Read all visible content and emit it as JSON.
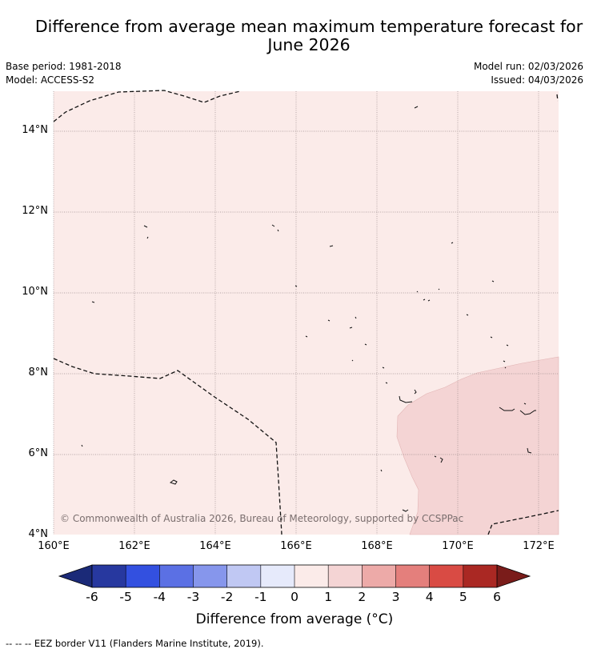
{
  "title": {
    "line1": "Difference from average mean maximum temperature forecast for",
    "line2": "June 2026"
  },
  "meta": {
    "base_period": "Base period: 1981-2018",
    "model": "Model: ACCESS-S2",
    "model_run": "Model run: 02/03/2026",
    "issued": "Issued: 04/03/2026"
  },
  "map": {
    "lat_labels": [
      "14°N",
      "12°N",
      "10°N",
      "8°N",
      "6°N",
      "4°N"
    ],
    "lon_labels": [
      "160°E",
      "162°E",
      "164°E",
      "166°E",
      "168°E",
      "170°E",
      "172°E"
    ],
    "copyright": "© Commonwealth of Australia 2026, Bureau of Meteorology, supported by CCSPPac",
    "background_color": "#fbebe9",
    "anomaly_region_color": "#f4d4d4"
  },
  "colorbar": {
    "ticks": [
      "-6",
      "-5",
      "-4",
      "-3",
      "-2",
      "-1",
      "0",
      "1",
      "2",
      "3",
      "4",
      "5",
      "6"
    ],
    "colors": [
      "#27389f",
      "#3350e0",
      "#5b70e4",
      "#8696ec",
      "#c0c8f3",
      "#e6eafb",
      "#fbebe9",
      "#f4d4d4",
      "#edaaa8",
      "#e47f7c",
      "#d94b44",
      "#aa2823"
    ],
    "under_color": "#1b2a78",
    "over_color": "#7a1c1a",
    "title": "Difference from average (°C)"
  },
  "footnote": "--  --  -- EEZ border V11 (Flanders Marine Institute, 2019)."
}
